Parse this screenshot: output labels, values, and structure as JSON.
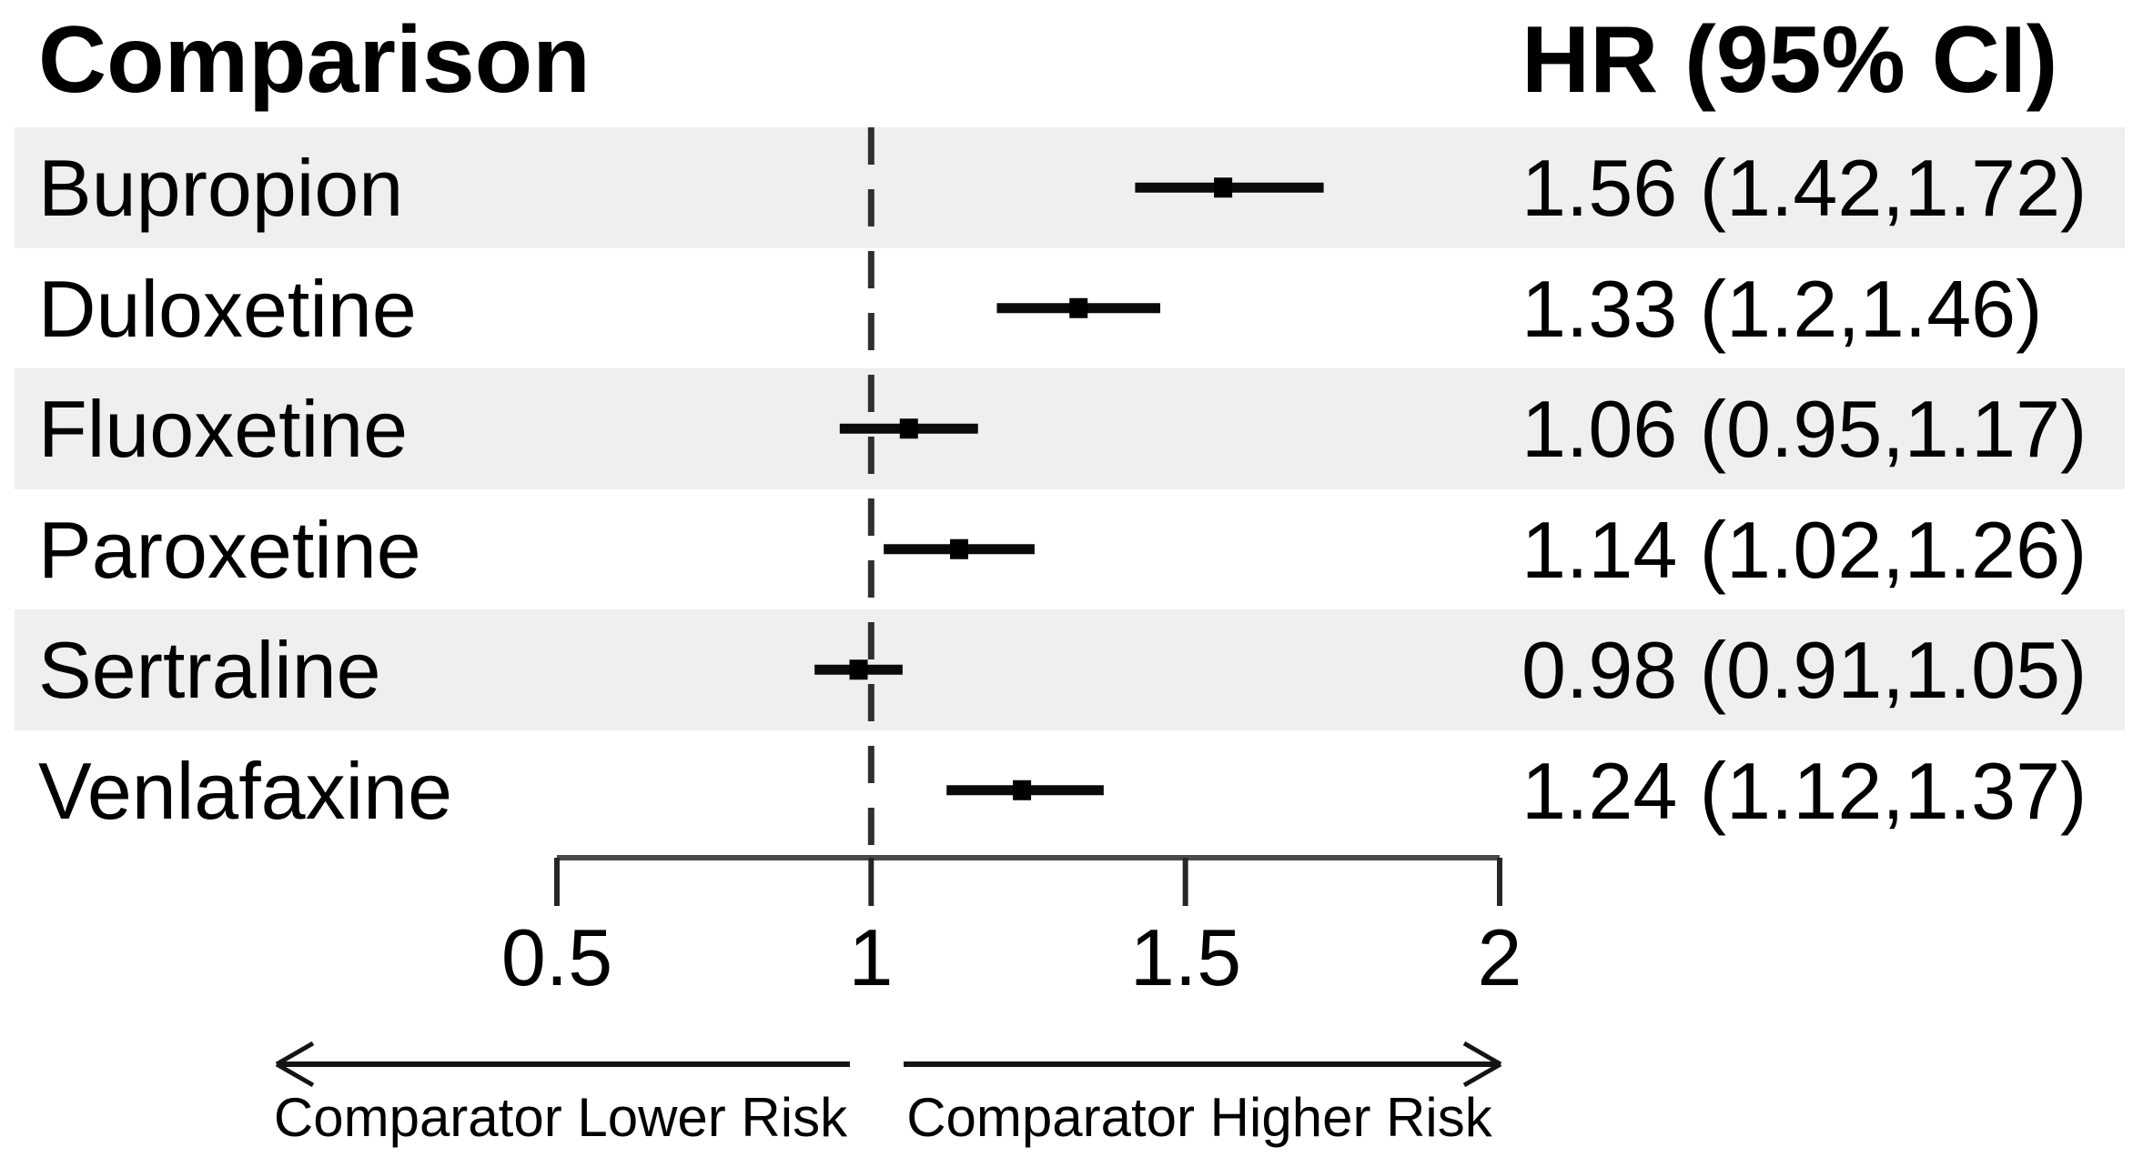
{
  "header": {
    "comparison_label": "Comparison",
    "hr_label": "HR (95% CI)"
  },
  "footer": {
    "left_arrow_label": "Comparator Lower Risk",
    "right_arrow_label": "Comparator Higher Risk"
  },
  "chart_data": {
    "type": "scatter",
    "plot_style": "forest-plot",
    "title": "",
    "column_headers": [
      "Comparison",
      "HR (95% CI)"
    ],
    "rows": [
      {
        "label": "Bupropion",
        "hr": 1.56,
        "ci_low": 1.42,
        "ci_high": 1.72,
        "hr_ci_text": "1.56 (1.42,1.72)"
      },
      {
        "label": "Duloxetine",
        "hr": 1.33,
        "ci_low": 1.2,
        "ci_high": 1.46,
        "hr_ci_text": "1.33 (1.2,1.46)"
      },
      {
        "label": "Fluoxetine",
        "hr": 1.06,
        "ci_low": 0.95,
        "ci_high": 1.17,
        "hr_ci_text": "1.06 (0.95,1.17)"
      },
      {
        "label": "Paroxetine",
        "hr": 1.14,
        "ci_low": 1.02,
        "ci_high": 1.26,
        "hr_ci_text": "1.14 (1.02,1.26)"
      },
      {
        "label": "Sertraline",
        "hr": 0.98,
        "ci_low": 0.91,
        "ci_high": 1.05,
        "hr_ci_text": "0.98 (0.91,1.05)"
      },
      {
        "label": "Venlafaxine",
        "hr": 1.24,
        "ci_low": 1.12,
        "ci_high": 1.37,
        "hr_ci_text": "1.24 (1.12,1.37)"
      }
    ],
    "x_axis": {
      "range": [
        0.5,
        2
      ],
      "tick_values": [
        0.5,
        1,
        1.5,
        2
      ],
      "tick_labels": [
        "0.5",
        "1",
        "1.5",
        "2"
      ],
      "reference_line": 1,
      "scale": "linear",
      "grid": false
    },
    "annotations": {
      "left_arrow_label": "Comparator Lower Risk",
      "right_arrow_label": "Comparator Higher Risk"
    },
    "legend": "none",
    "colors": {
      "row_shade": "#edf0ee",
      "text": "#000000",
      "ci_bar": "#0a0a0a",
      "point_marker": "#000000",
      "axis_line": "#4a4a4a",
      "tick": "#262626",
      "reference_dash": "#303030",
      "arrow": "#141414",
      "background": "#ffffff"
    }
  }
}
